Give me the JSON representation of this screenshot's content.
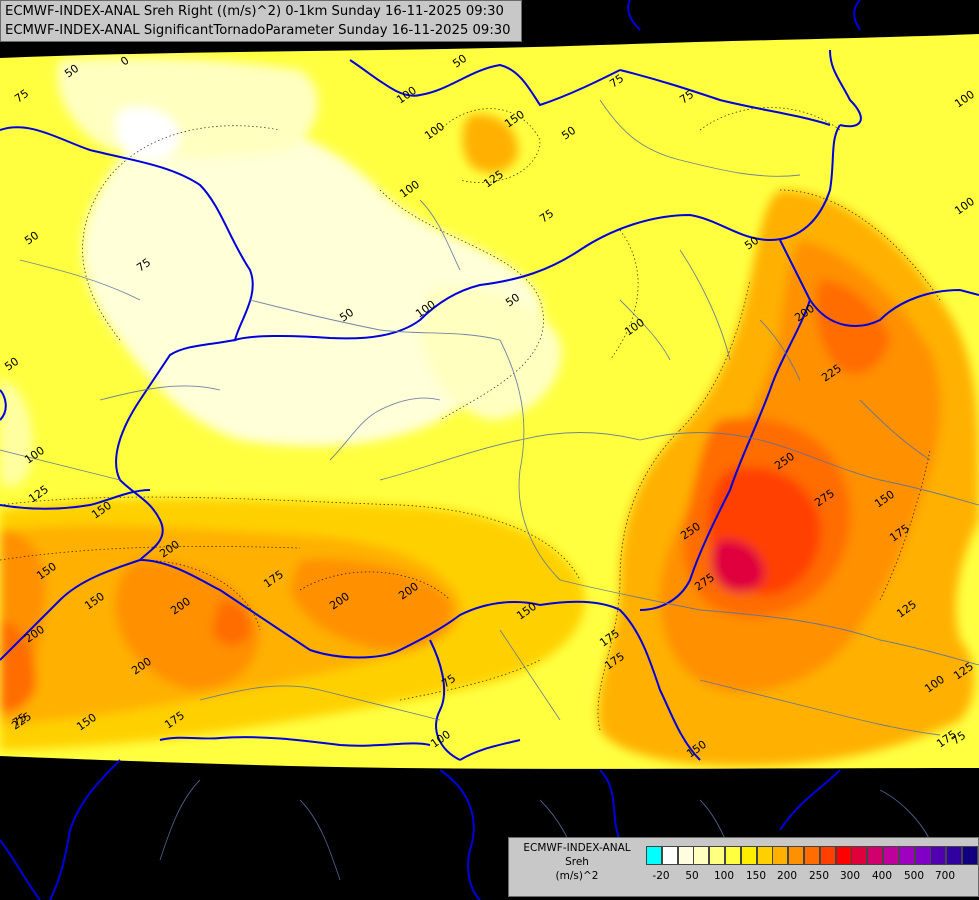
{
  "header": {
    "line1": "ECMWF-INDEX-ANAL Sreh Right ((m/s)^2) 0-1km Sunday 16-11-2025 09:30",
    "line2": "ECMWF-INDEX-ANAL SignificantTornadoParameter Sunday 16-11-2025 09:30"
  },
  "legend": {
    "title_line1": "ECMWF-INDEX-ANAL",
    "title_line2": "Sreh",
    "title_line3": "(m/s)^2",
    "colors": [
      "#00ffff",
      "#ffffff",
      "#fffde0",
      "#ffffc0",
      "#ffff80",
      "#ffff40",
      "#ffee00",
      "#ffd000",
      "#ffb000",
      "#ff9000",
      "#ff6c00",
      "#ff4000",
      "#ff0000",
      "#e0003c",
      "#d0006c",
      "#c0009c",
      "#a000c0",
      "#8000c8",
      "#5000b0",
      "#3000a0",
      "#100080"
    ],
    "ticks": [
      "-20",
      "50",
      "100",
      "150",
      "200",
      "250",
      "300",
      "400",
      "500",
      "700"
    ]
  },
  "contour_labels": [
    "50",
    "0",
    "75",
    "150",
    "100",
    "125",
    "50",
    "75",
    "75",
    "100",
    "50",
    "75",
    "100",
    "100",
    "50",
    "100",
    "50",
    "75",
    "50",
    "50",
    "100",
    "100",
    "200",
    "225",
    "50",
    "100",
    "250",
    "275",
    "250",
    "275",
    "150",
    "175",
    "125",
    "150",
    "125",
    "150",
    "150",
    "175",
    "200",
    "200",
    "200",
    "175",
    "200",
    "200",
    "175",
    "75",
    "150",
    "75",
    "200",
    "225",
    "175",
    "150",
    "100",
    "125",
    "175",
    "150",
    "100",
    "75"
  ]
}
